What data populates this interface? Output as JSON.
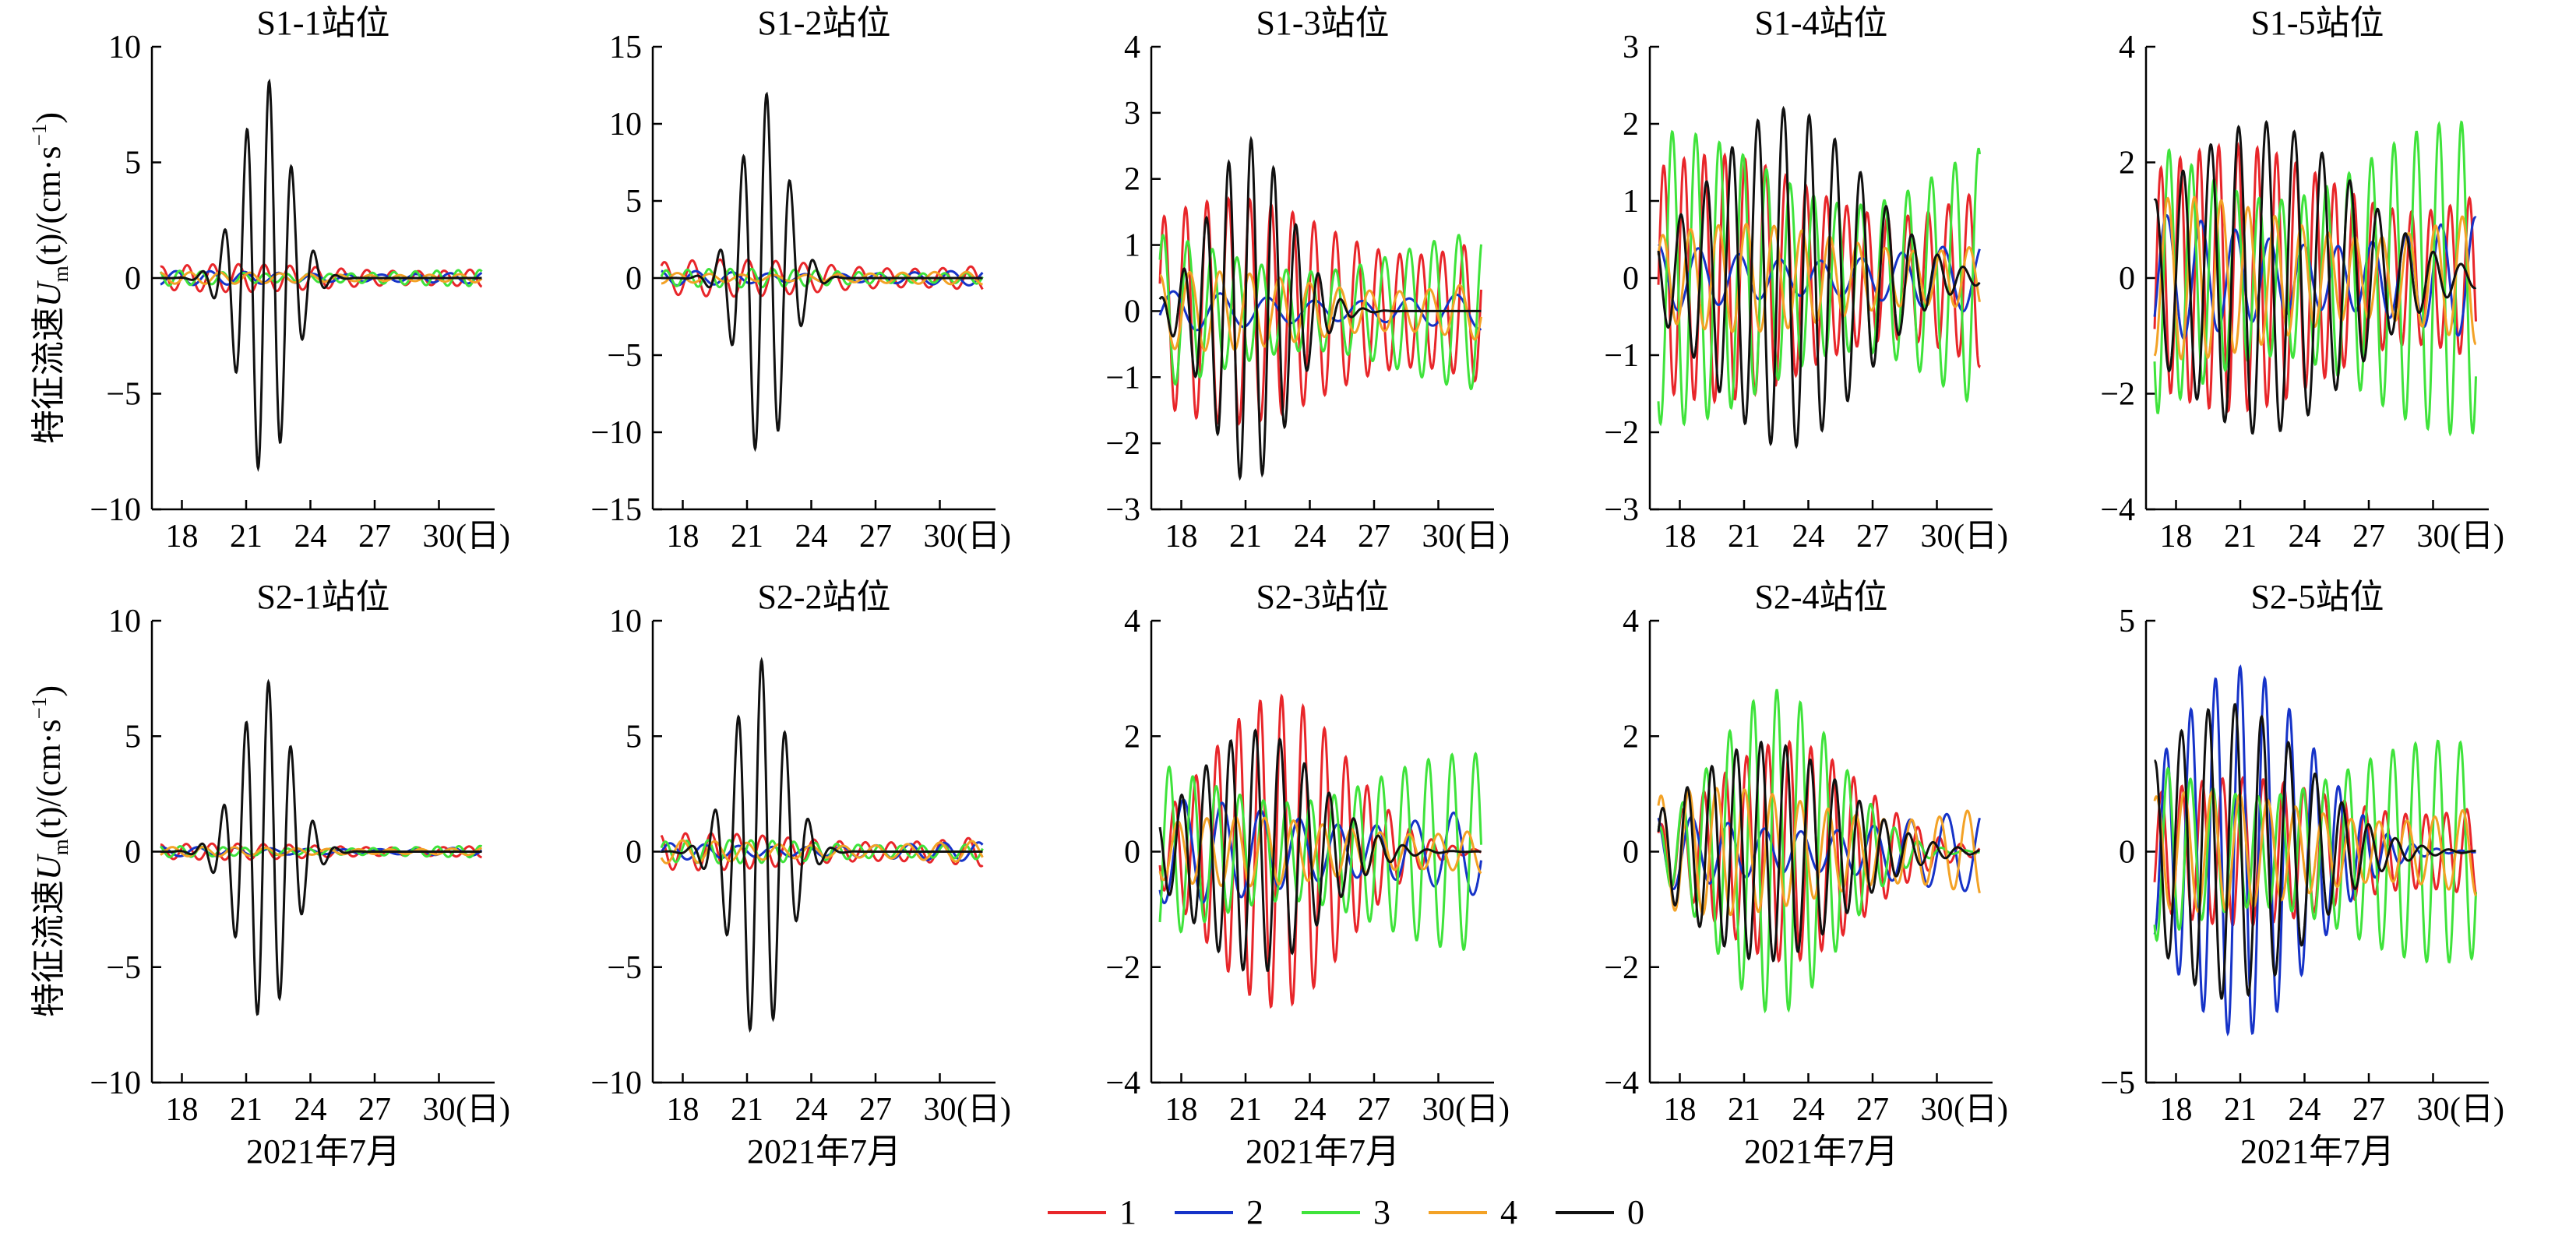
{
  "figure": {
    "ylabel_prefix": "特征流速",
    "ylabel_var": "U",
    "ylabel_sub": "m",
    "ylabel_mid": "(t)/(cm·s",
    "ylabel_sup": "−1",
    "ylabel_end": ")",
    "xlabel": "2021年7月",
    "x_unit": "(日)",
    "x_ticks": [
      "18",
      "21",
      "24",
      "27",
      "30"
    ],
    "legend": [
      {
        "label": "1",
        "color": "#e8262a"
      },
      {
        "label": "2",
        "color": "#1633c8"
      },
      {
        "label": "3",
        "color": "#3fe33b"
      },
      {
        "label": "4",
        "color": "#f3a226"
      },
      {
        "label": "0",
        "color": "#111111"
      }
    ]
  },
  "chart_data": [
    {
      "type": "line",
      "title": "S1-1站位",
      "ylim": [
        -10,
        10
      ],
      "yticks": [
        -10,
        -5,
        0,
        5,
        10
      ],
      "xlim": [
        16.6,
        32.6
      ],
      "series": [
        {
          "name": "1",
          "amp": 0.6,
          "period": 1.2,
          "phase": 0.3
        },
        {
          "name": "2",
          "amp": 0.3,
          "period": 1.6,
          "phase": 1.1
        },
        {
          "name": "3",
          "amp": 0.35,
          "period": 1.0,
          "phase": 2.2
        },
        {
          "name": "4",
          "amp": 0.25,
          "period": 1.4,
          "phase": 0.8
        },
        {
          "name": "0",
          "amp": 8.6,
          "period": 1.05,
          "phase": 0.5,
          "center": 21.9,
          "width": 1.6
        }
      ]
    },
    {
      "type": "line",
      "title": "S1-2站位",
      "ylim": [
        -15,
        15
      ],
      "yticks": [
        -15,
        -10,
        -5,
        0,
        5,
        10,
        15
      ],
      "xlim": [
        16.6,
        32.6
      ],
      "series": [
        {
          "name": "1",
          "amp": 1.2,
          "period": 1.3,
          "phase": 0.4
        },
        {
          "name": "2",
          "amp": 0.5,
          "period": 1.7,
          "phase": 1.9
        },
        {
          "name": "3",
          "amp": 0.6,
          "period": 1.0,
          "phase": 0.2
        },
        {
          "name": "4",
          "amp": 0.4,
          "period": 1.5,
          "phase": 2.6
        },
        {
          "name": "0",
          "amp": 12.0,
          "period": 1.1,
          "phase": 0.9,
          "center": 21.8,
          "width": 1.5
        }
      ]
    },
    {
      "type": "line",
      "title": "S1-3站位",
      "ylim": [
        -3,
        4
      ],
      "yticks": [
        -3,
        -2,
        -1,
        0,
        1,
        2,
        3,
        4
      ],
      "xlim": [
        16.6,
        32.6
      ],
      "series": [
        {
          "name": "1",
          "amp": 1.7,
          "period": 1.0,
          "phase": 0.3
        },
        {
          "name": "2",
          "amp": 0.3,
          "period": 2.2,
          "phase": 1.5
        },
        {
          "name": "3",
          "amp": 1.2,
          "period": 1.15,
          "phase": 2.1
        },
        {
          "name": "4",
          "amp": 0.6,
          "period": 1.4,
          "phase": 0.7
        },
        {
          "name": "0",
          "amp": 2.6,
          "period": 1.05,
          "phase": 1.2,
          "center": 21.2,
          "width": 2.6
        }
      ]
    },
    {
      "type": "line",
      "title": "S1-4站位",
      "ylim": [
        -3,
        3
      ],
      "yticks": [
        -3,
        -2,
        -1,
        0,
        1,
        2,
        3
      ],
      "xlim": [
        16.6,
        32.6
      ],
      "series": [
        {
          "name": "1",
          "amp": 1.6,
          "period": 0.95,
          "phase": 0.6
        },
        {
          "name": "2",
          "amp": 0.45,
          "period": 1.9,
          "phase": 2.0
        },
        {
          "name": "3",
          "amp": 1.9,
          "period": 1.1,
          "phase": 1.3
        },
        {
          "name": "4",
          "amp": 0.7,
          "period": 1.3,
          "phase": 0.1
        },
        {
          "name": "0",
          "amp": 2.2,
          "period": 1.2,
          "phase": 2.4,
          "center": 23.0,
          "width": 5.0
        }
      ]
    },
    {
      "type": "line",
      "title": "S1-5站位",
      "ylim": [
        -4,
        4
      ],
      "yticks": [
        -4,
        -2,
        0,
        2,
        4
      ],
      "xlim": [
        16.6,
        32.6
      ],
      "series": [
        {
          "name": "1",
          "amp": 2.3,
          "period": 0.9,
          "phase": 0.2
        },
        {
          "name": "2",
          "amp": 1.1,
          "period": 1.6,
          "phase": 1.7
        },
        {
          "name": "3",
          "amp": 2.7,
          "period": 1.05,
          "phase": 2.6
        },
        {
          "name": "4",
          "amp": 1.4,
          "period": 1.25,
          "phase": 1.0
        },
        {
          "name": "0",
          "amp": 2.7,
          "period": 1.3,
          "phase": 0.5,
          "center": 22.0,
          "width": 6.0
        }
      ]
    },
    {
      "type": "line",
      "title": "S2-1站位",
      "ylim": [
        -10,
        10
      ],
      "yticks": [
        -10,
        -5,
        0,
        5,
        10
      ],
      "xlim": [
        16.6,
        32.6
      ],
      "series": [
        {
          "name": "1",
          "amp": 0.35,
          "period": 1.2,
          "phase": 0.5
        },
        {
          "name": "2",
          "amp": 0.2,
          "period": 1.7,
          "phase": 1.4
        },
        {
          "name": "3",
          "amp": 0.25,
          "period": 1.0,
          "phase": 2.0
        },
        {
          "name": "4",
          "amp": 0.2,
          "period": 1.45,
          "phase": 0.9
        },
        {
          "name": "0",
          "amp": 7.4,
          "period": 1.05,
          "phase": 0.7,
          "center": 21.9,
          "width": 1.7
        }
      ]
    },
    {
      "type": "line",
      "title": "S2-2站位",
      "ylim": [
        -10,
        10
      ],
      "yticks": [
        -10,
        -5,
        0,
        5,
        10
      ],
      "xlim": [
        16.6,
        32.6
      ],
      "series": [
        {
          "name": "1",
          "amp": 0.8,
          "period": 1.2,
          "phase": 0.9
        },
        {
          "name": "2",
          "amp": 0.4,
          "period": 1.6,
          "phase": 2.3
        },
        {
          "name": "3",
          "amp": 0.5,
          "period": 1.0,
          "phase": 0.4
        },
        {
          "name": "4",
          "amp": 0.5,
          "period": 1.5,
          "phase": 1.6
        },
        {
          "name": "0",
          "amp": 8.3,
          "period": 1.1,
          "phase": 1.1,
          "center": 21.6,
          "width": 1.7
        }
      ]
    },
    {
      "type": "line",
      "title": "S2-3站位",
      "ylim": [
        -4,
        4
      ],
      "yticks": [
        -4,
        -2,
        0,
        2,
        4
      ],
      "xlim": [
        16.6,
        32.6
      ],
      "series": [
        {
          "name": "1",
          "amp": 2.7,
          "period": 1.0,
          "phase": 0.4,
          "center": 22.5,
          "width": 4.5
        },
        {
          "name": "2",
          "amp": 0.9,
          "period": 1.8,
          "phase": 1.2
        },
        {
          "name": "3",
          "amp": 1.7,
          "period": 1.1,
          "phase": 2.5
        },
        {
          "name": "4",
          "amp": 0.6,
          "period": 1.35,
          "phase": 0.2
        },
        {
          "name": "0",
          "amp": 2.1,
          "period": 1.15,
          "phase": 1.8,
          "center": 21.5,
          "width": 4.0
        }
      ]
    },
    {
      "type": "line",
      "title": "S2-4站位",
      "ylim": [
        -4,
        4
      ],
      "yticks": [
        -4,
        -2,
        0,
        2,
        4
      ],
      "xlim": [
        16.6,
        32.6
      ],
      "series": [
        {
          "name": "1",
          "amp": 1.9,
          "period": 1.0,
          "phase": 0.8,
          "center": 23.0,
          "width": 5.0
        },
        {
          "name": "2",
          "amp": 0.7,
          "period": 1.7,
          "phase": 2.1
        },
        {
          "name": "3",
          "amp": 2.8,
          "period": 1.1,
          "phase": 1.4,
          "center": 22.5,
          "width": 4.0
        },
        {
          "name": "4",
          "amp": 1.1,
          "period": 1.3,
          "phase": 0.5
        },
        {
          "name": "0",
          "amp": 1.9,
          "period": 1.15,
          "phase": 2.7,
          "center": 22.0,
          "width": 5.0
        }
      ]
    },
    {
      "type": "line",
      "title": "S2-5站位",
      "ylim": [
        -5,
        5
      ],
      "yticks": [
        -5,
        0,
        5
      ],
      "xlim": [
        16.6,
        32.6
      ],
      "series": [
        {
          "name": "1",
          "amp": 1.6,
          "period": 0.95,
          "phase": 0.1
        },
        {
          "name": "2",
          "amp": 4.0,
          "period": 1.15,
          "phase": 1.6,
          "center": 21.0,
          "width": 4.5
        },
        {
          "name": "3",
          "amp": 2.4,
          "period": 1.05,
          "phase": 2.9
        },
        {
          "name": "4",
          "amp": 1.3,
          "period": 1.3,
          "phase": 0.7
        },
        {
          "name": "0",
          "amp": 3.2,
          "period": 1.25,
          "phase": 0.3,
          "center": 20.5,
          "width": 5.0
        }
      ]
    }
  ]
}
